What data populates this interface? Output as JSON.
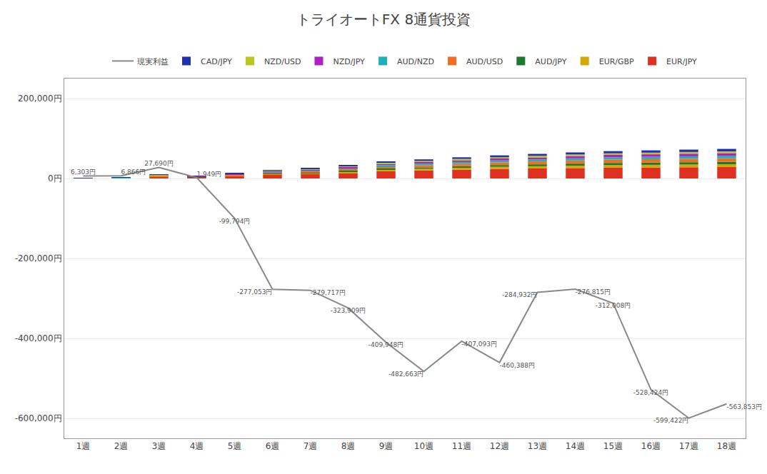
{
  "chart_data": {
    "type": "bar",
    "title": "トライオートFX 8通貨投資",
    "categories": [
      "1週",
      "2週",
      "3週",
      "4週",
      "5週",
      "6週",
      "7週",
      "8週",
      "9週",
      "10週",
      "11週",
      "12週",
      "13週",
      "14週",
      "15週",
      "16週",
      "17週",
      "18週"
    ],
    "stacked": true,
    "grid": true,
    "legend": "top",
    "series": [
      {
        "name": "EUR/JPY",
        "type": "bar",
        "color": "#e03020",
        "values": [
          500,
          1000,
          5000,
          3000,
          6000,
          9000,
          11000,
          14000,
          18000,
          20000,
          22000,
          24000,
          25000,
          26000,
          27000,
          27500,
          28000,
          28500
        ]
      },
      {
        "name": "EUR/GBP",
        "type": "bar",
        "color": "#d4a800",
        "values": [
          100,
          200,
          800,
          500,
          1200,
          2000,
          2500,
          3000,
          3800,
          4200,
          4800,
          5200,
          5600,
          6000,
          6400,
          6600,
          6800,
          7000
        ]
      },
      {
        "name": "AUD/JPY",
        "type": "bar",
        "color": "#1a7a30",
        "values": [
          100,
          200,
          600,
          400,
          800,
          1500,
          2000,
          2500,
          3200,
          3600,
          4000,
          4400,
          4800,
          5200,
          5500,
          5700,
          5900,
          6000
        ]
      },
      {
        "name": "AUD/USD",
        "type": "bar",
        "color": "#f07020",
        "values": [
          150,
          300,
          1000,
          700,
          1500,
          2500,
          3200,
          4000,
          5000,
          5600,
          6200,
          6800,
          7300,
          7800,
          8200,
          8500,
          8700,
          9000
        ]
      },
      {
        "name": "AUD/NZD",
        "type": "bar",
        "color": "#20b0b8",
        "values": [
          100,
          200,
          700,
          500,
          1000,
          1700,
          2200,
          2800,
          3500,
          3900,
          4300,
          4700,
          5000,
          5400,
          5700,
          5900,
          6100,
          6300
        ]
      },
      {
        "name": "NZD/JPY",
        "type": "bar",
        "color": "#b020c0",
        "values": [
          100,
          200,
          800,
          500,
          1100,
          1800,
          2300,
          2900,
          3700,
          4100,
          4600,
          5000,
          5400,
          5800,
          6100,
          6300,
          6500,
          6700
        ]
      },
      {
        "name": "NZD/USD",
        "type": "bar",
        "color": "#b8c820",
        "values": [
          80,
          150,
          500,
          350,
          700,
          1200,
          1500,
          1900,
          2400,
          2700,
          3000,
          3200,
          3500,
          3800,
          4000,
          4100,
          4300,
          4400
        ]
      },
      {
        "name": "CAD/JPY",
        "type": "bar",
        "color": "#2030b0",
        "values": [
          100,
          200,
          700,
          500,
          1000,
          1600,
          2100,
          2600,
          3300,
          3700,
          4100,
          4500,
          4900,
          5200,
          5500,
          5700,
          5900,
          6100
        ]
      },
      {
        "name": "現実利益",
        "type": "line",
        "color": "#888888",
        "data_labels": true,
        "values": [
          6303,
          6866,
          27690,
          1949,
          -99794,
          -277053,
          -279717,
          -323909,
          -409948,
          -482663,
          -407093,
          -460388,
          -284932,
          -276815,
          -312008,
          -528424,
          -599422,
          -563853
        ],
        "value_labels": [
          "6,303円",
          "6,866円",
          "27,690円",
          "1,949円",
          "-99,794円",
          "-277,053円",
          "-279,717円",
          "-323,909円",
          "-409,948円",
          "-482,663円",
          "-407,093円",
          "-460,388円",
          "-284,932円",
          "-276,815円",
          "-312,008円",
          "-528,424円",
          "-599,422円",
          "-563,853円"
        ]
      }
    ],
    "ylim": [
      -650000,
      250000
    ],
    "yticks": [
      {
        "value": -600000,
        "label": "-600,000円"
      },
      {
        "value": -400000,
        "label": "-400,000円"
      },
      {
        "value": -200000,
        "label": "-200,000円"
      },
      {
        "value": 0,
        "label": "0円"
      },
      {
        "value": 200000,
        "label": "200,000円"
      }
    ]
  }
}
